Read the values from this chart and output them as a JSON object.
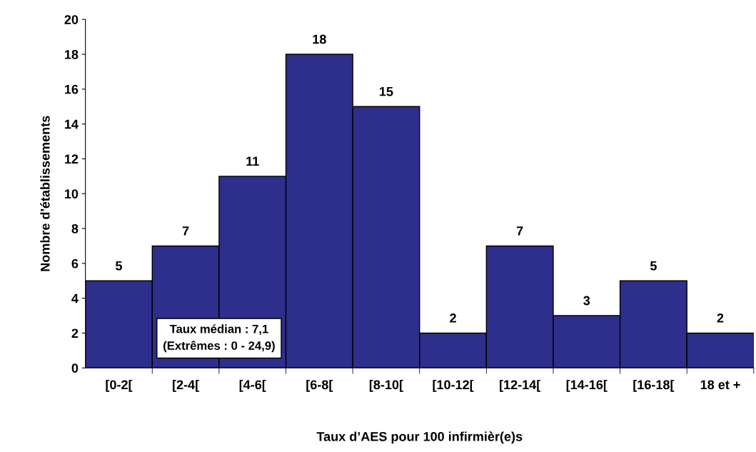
{
  "chart_data": {
    "type": "bar",
    "xlabel": "Taux d’AES pour 100 infirmièr(e)s",
    "ylabel": "Nombre d'établissements",
    "categories": [
      "[0-2[",
      "[2-4[",
      "[4-6[",
      "[6-8[",
      "[8-10[",
      "[10-12[",
      "[12-14[",
      "[14-16[",
      "[16-18[",
      "18 et +"
    ],
    "values": [
      5,
      7,
      11,
      18,
      15,
      2,
      7,
      3,
      5,
      2
    ],
    "color": "#2e2e8c",
    "ylim": [
      0,
      20
    ],
    "yticks": [
      0,
      2,
      4,
      6,
      8,
      10,
      12,
      14,
      16,
      18,
      20
    ],
    "data_labels": true,
    "grid": false,
    "legend": false,
    "annotations": [
      "Taux médian : 7,1\n(Extrêmes : 0 - 24,9)"
    ]
  }
}
